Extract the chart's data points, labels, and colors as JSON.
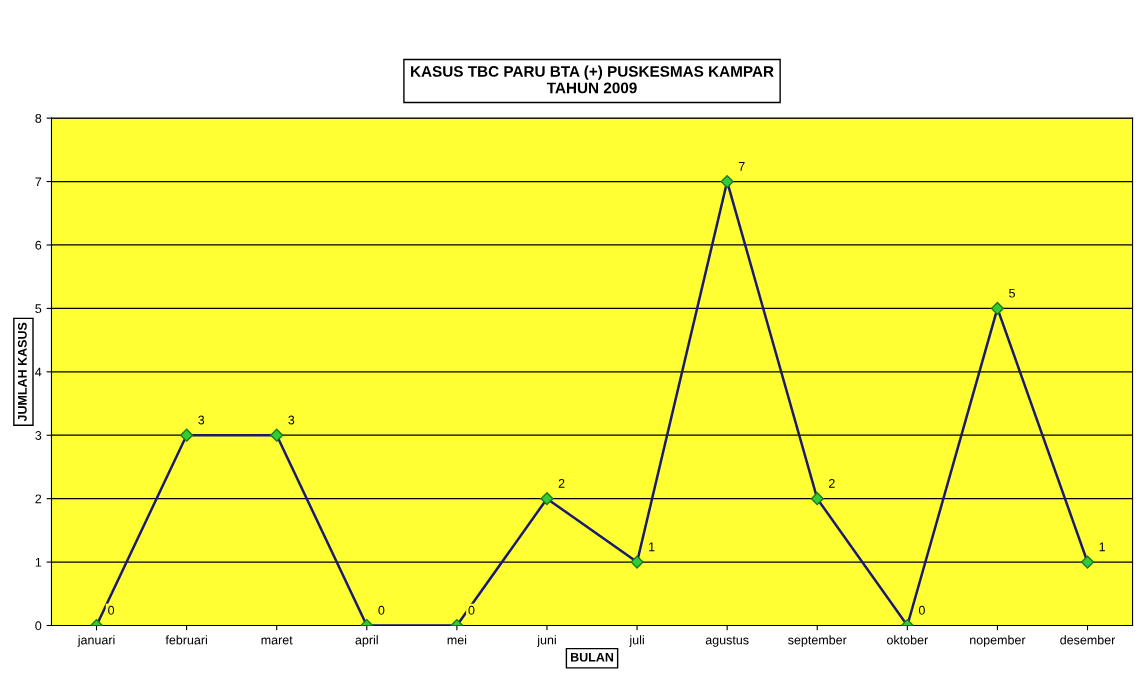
{
  "chart_data": {
    "type": "line",
    "title": "KASUS TBC PARU BTA (+) PUSKESMAS KAMPAR\nTAHUN 2009",
    "xlabel": "BULAN",
    "ylabel": "JUMLAH KASUS",
    "categories": [
      "januari",
      "februari",
      "maret",
      "april",
      "mei",
      "juni",
      "juli",
      "agustus",
      "september",
      "oktober",
      "nopember",
      "desember"
    ],
    "series": [
      {
        "color": "#1a1a6e",
        "values": [
          0,
          3,
          3,
          0,
          0,
          2,
          1,
          7,
          2,
          0,
          5,
          1
        ]
      }
    ],
    "ylim": [
      0,
      8
    ],
    "yticks": [
      0,
      1,
      2,
      3,
      4,
      5,
      6,
      7,
      8
    ],
    "grid": "y",
    "marker": "diamond",
    "line_style": "solid",
    "data_labels": true
  }
}
